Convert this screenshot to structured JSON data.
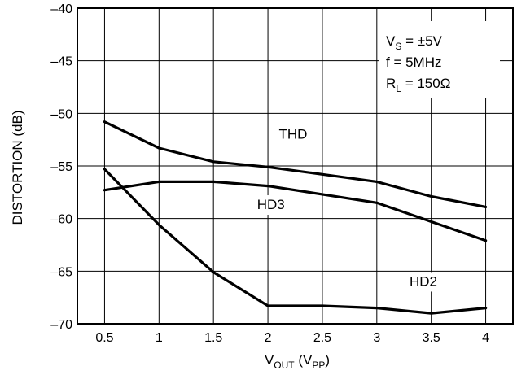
{
  "chart_data": {
    "type": "line",
    "title": "",
    "xlabel": {
      "main": "V",
      "sub": "OUT",
      "unit_main": " (V",
      "unit_sub": "PP",
      "unit_close": ")"
    },
    "ylabel": "DISTORTION (dB)",
    "xlim": [
      0.25,
      4.25
    ],
    "ylim": [
      -70,
      -40
    ],
    "xticks": [
      0.5,
      1,
      1.5,
      2,
      2.5,
      3,
      3.5,
      4
    ],
    "xtick_labels": [
      "0.5",
      "1",
      "1.5",
      "2",
      "2.5",
      "3",
      "3.5",
      "4"
    ],
    "yticks": [
      -70,
      -65,
      -60,
      -55,
      -50,
      -45,
      -40
    ],
    "ytick_labels": [
      "–70",
      "–65",
      "–60",
      "–55",
      "–50",
      "–45",
      "–40"
    ],
    "grid": true,
    "legend": "none",
    "conditions": {
      "vs": {
        "main": "V",
        "sub": "S",
        "rest": " = ±5V"
      },
      "f": "f = 5MHz",
      "rl": {
        "main": "R",
        "sub": "L",
        "rest": " = 150Ω"
      }
    },
    "series": [
      {
        "name": "THD",
        "x": [
          0.5,
          1,
          1.5,
          2,
          2.5,
          3,
          3.5,
          4
        ],
        "y": [
          -50.8,
          -53.3,
          -54.6,
          -55.1,
          -55.8,
          -56.5,
          -57.9,
          -58.9
        ]
      },
      {
        "name": "HD3",
        "x": [
          0.5,
          1,
          1.5,
          2,
          2.5,
          3,
          3.5,
          4
        ],
        "y": [
          -57.3,
          -56.5,
          -56.5,
          -56.9,
          -57.7,
          -58.5,
          -60.3,
          -62.1
        ]
      },
      {
        "name": "HD2",
        "x": [
          0.5,
          1,
          1.5,
          2,
          2.5,
          3,
          3.5,
          4
        ],
        "y": [
          -55.3,
          -60.6,
          -65.1,
          -68.3,
          -68.3,
          -68.5,
          -69.0,
          -68.5
        ]
      }
    ]
  }
}
